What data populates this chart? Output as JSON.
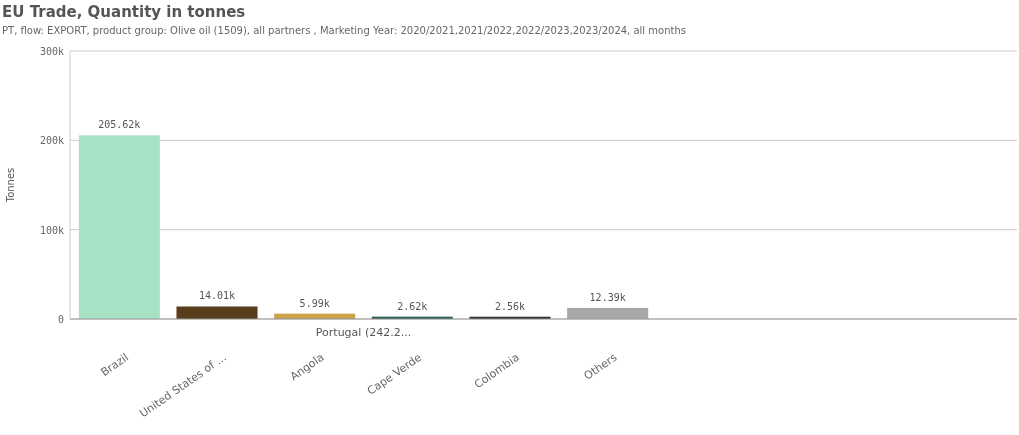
{
  "chart_data": {
    "type": "bar",
    "title": "EU Trade, Quantity in tonnes",
    "subtitle": "PT, flow: EXPORT, product group: Olive oil (1509), all partners , Marketing Year: 2020/2021,2021/2022,2022/2023,2023/2024, all months",
    "ylabel": "Tonnes",
    "categories": [
      "Brazil",
      "United States of ...",
      "Angola",
      "Cape Verde",
      "Colombia",
      "Others"
    ],
    "values": [
      205620,
      14010,
      5990,
      2620,
      2560,
      12390
    ],
    "colors": [
      "#a8e2c4",
      "#5a3e1c",
      "#c9a24a",
      "#2f5e5a",
      "#333333",
      "#a8a8a8"
    ],
    "value_labels": [
      "205.62k",
      "14.01k",
      "5.99k",
      "2.62k",
      "2.56k",
      "12.39k"
    ],
    "ylim": [
      0,
      300000
    ],
    "yticks": [
      {
        "value": 0,
        "label": "0"
      },
      {
        "value": 100000,
        "label": "100k"
      },
      {
        "value": 200000,
        "label": "200k"
      },
      {
        "value": 300000,
        "label": "300k"
      }
    ],
    "grid": "y",
    "annotations": [
      "Portugal (242.2..."
    ]
  }
}
